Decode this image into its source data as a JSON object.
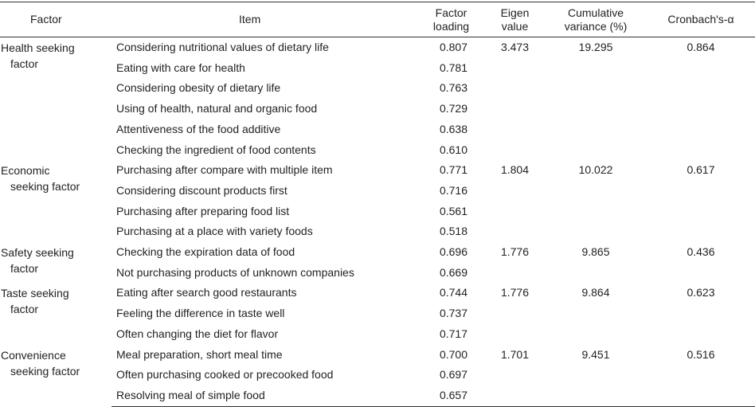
{
  "headers": {
    "factor": "Factor",
    "item": "Item",
    "loading": "Factor loading",
    "eigen": "Eigen value",
    "cumulative": "Cumulative variance (%)",
    "alpha": "Cronbach's-α"
  },
  "groups": [
    {
      "factor_line1": "Health seeking",
      "factor_line2": "factor",
      "eigen": "3.473",
      "cumulative": "19.295",
      "alpha": "0.864",
      "items": [
        {
          "text": "Considering nutritional values of dietary life",
          "loading": "0.807"
        },
        {
          "text": "Eating with care for health",
          "loading": "0.781"
        },
        {
          "text": "Considering obesity of dietary life",
          "loading": "0.763"
        },
        {
          "text": "Using of health, natural and organic food",
          "loading": "0.729"
        },
        {
          "text": "Attentiveness of the food additive",
          "loading": "0.638"
        },
        {
          "text": "Checking the ingredient of food contents",
          "loading": "0.610"
        }
      ]
    },
    {
      "factor_line1": "Economic",
      "factor_line2": "seeking factor",
      "eigen": "1.804",
      "cumulative": "10.022",
      "alpha": "0.617",
      "items": [
        {
          "text": "Purchasing after compare with multiple item",
          "loading": "0.771"
        },
        {
          "text": "Considering discount products first",
          "loading": "0.716"
        },
        {
          "text": "Purchasing after preparing food list",
          "loading": "0.561"
        },
        {
          "text": "Purchasing at a place with variety foods",
          "loading": "0.518"
        }
      ]
    },
    {
      "factor_line1": "Safety seeking",
      "factor_line2": "factor",
      "eigen": "1.776",
      "cumulative": "9.865",
      "alpha": "0.436",
      "items": [
        {
          "text": "Checking the expiration data of food",
          "loading": "0.696"
        },
        {
          "text": "Not purchasing products of unknown companies",
          "loading": "0.669"
        }
      ]
    },
    {
      "factor_line1": "Taste seeking",
      "factor_line2": "factor",
      "eigen": "1.776",
      "cumulative": "9.864",
      "alpha": "0.623",
      "items": [
        {
          "text": "Eating after search good restaurants",
          "loading": "0.744"
        },
        {
          "text": "Feeling the difference in taste well",
          "loading": "0.737"
        },
        {
          "text": "Often changing the diet for flavor",
          "loading": "0.717"
        }
      ]
    },
    {
      "factor_line1": "Convenience",
      "factor_line2": "seeking factor",
      "eigen": "1.701",
      "cumulative": "9.451",
      "alpha": "0.516",
      "items": [
        {
          "text": "Meal preparation, short meal time",
          "loading": "0.700"
        },
        {
          "text": "Often purchasing cooked or precooked food",
          "loading": "0.697"
        },
        {
          "text": "Resolving meal of simple food",
          "loading": "0.657"
        }
      ]
    }
  ]
}
